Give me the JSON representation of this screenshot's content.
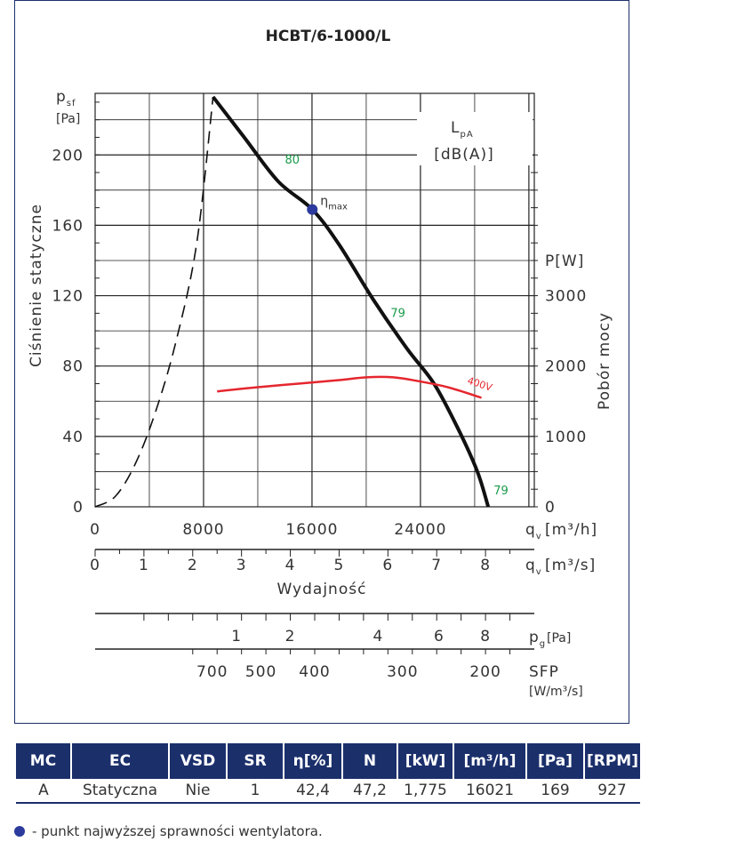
{
  "chart_data": {
    "type": "line",
    "title": "HCBT/6-1000/L",
    "y_left": {
      "symbol": "p",
      "symbol_sub": "sf",
      "unit": "[Pa]",
      "label": "Ciśnienie statyczne",
      "ticks": [
        0,
        40,
        80,
        120,
        160,
        200
      ],
      "range": [
        0,
        235
      ]
    },
    "y_right": {
      "label": "Pobór mocy",
      "unit_label": "P[W]",
      "ticks": [
        0,
        1000,
        2000,
        3000
      ],
      "tick_labels": [
        "0",
        "1000",
        "2000",
        "3000"
      ],
      "color": "#e5262e"
    },
    "x_m3h": {
      "symbol": "q",
      "symbol_sub": "v",
      "unit": "[m³/h]",
      "ticks": [
        0,
        8000,
        16000,
        24000
      ],
      "range": [
        0,
        32400
      ]
    },
    "x_m3s": {
      "symbol": "q",
      "symbol_sub": "v",
      "unit": "[m³/s]",
      "ticks": [
        0,
        1,
        2,
        3,
        4,
        5,
        6,
        7,
        8
      ],
      "label": "Wydajność"
    },
    "pg_scale": {
      "symbol": "p",
      "symbol_sub": "g",
      "unit": "[Pa]",
      "ticks": [
        "1",
        "2",
        "4",
        "6",
        "8"
      ],
      "tick_m3s": [
        2.9,
        4.0,
        5.8,
        7.05,
        8.0
      ]
    },
    "sfp_scale": {
      "label": "SFP",
      "unit": "[W/m³/s]",
      "ticks": [
        "700",
        "500",
        "400",
        "300",
        "200"
      ],
      "tick_m3s": [
        2.4,
        3.4,
        4.5,
        6.3,
        8.0
      ]
    },
    "lpa_label": {
      "main": "L",
      "sub": "pA",
      "unit": "[dB(A)]",
      "color": "#1a9a4a"
    },
    "series": [
      {
        "role": "fan-curve",
        "color": "#111111",
        "points": [
          [
            8700,
            233
          ],
          [
            11000,
            210
          ],
          [
            13500,
            185
          ],
          [
            16021,
            169
          ],
          [
            18000,
            149
          ],
          [
            20500,
            118
          ],
          [
            23000,
            90
          ],
          [
            25000,
            70
          ],
          [
            26800,
            44
          ],
          [
            28200,
            20
          ],
          [
            29000,
            0
          ]
        ]
      },
      {
        "role": "system-curve-dashed",
        "color": "#111111",
        "points": [
          [
            0,
            0
          ],
          [
            1500,
            6
          ],
          [
            3000,
            25
          ],
          [
            4500,
            55
          ],
          [
            6000,
            95
          ],
          [
            7500,
            150
          ],
          [
            8700,
            233
          ]
        ]
      },
      {
        "name": "400V",
        "role": "power",
        "color": "#e5262e",
        "points": [
          [
            9000,
            1640
          ],
          [
            12000,
            1700
          ],
          [
            15000,
            1750
          ],
          [
            18000,
            1800
          ],
          [
            20000,
            1840
          ],
          [
            22000,
            1840
          ],
          [
            24000,
            1780
          ],
          [
            26000,
            1700
          ],
          [
            28500,
            1550
          ]
        ]
      }
    ],
    "annotations": {
      "lpa_values": [
        {
          "text": "80",
          "x": 14000,
          "y": 195
        },
        {
          "text": "79",
          "x": 21800,
          "y": 108
        },
        {
          "text": "79",
          "x": 29400,
          "y": 7
        }
      ],
      "eta_point": {
        "x": 16021,
        "y": 169,
        "text": "η",
        "sub": "max"
      },
      "power_label": "400V"
    },
    "grid": true
  },
  "table": {
    "headers": [
      "MC",
      "EC",
      "VSD",
      "SR",
      "η[%]",
      "N",
      "[kW]",
      "[m³/h]",
      "[Pa]",
      "[RPM]"
    ],
    "row": [
      "A",
      "Statyczna",
      "Nie",
      "1",
      "42,4",
      "47,2",
      "1,775",
      "16021",
      "169",
      "927"
    ]
  },
  "legend_note": "- punkt najwyższej sprawności wentylatora.",
  "colors": {
    "navy": "#1b2f6b",
    "red": "#e5262e",
    "green": "#1a9a4a",
    "eta_dot": "#2b3a9c"
  }
}
